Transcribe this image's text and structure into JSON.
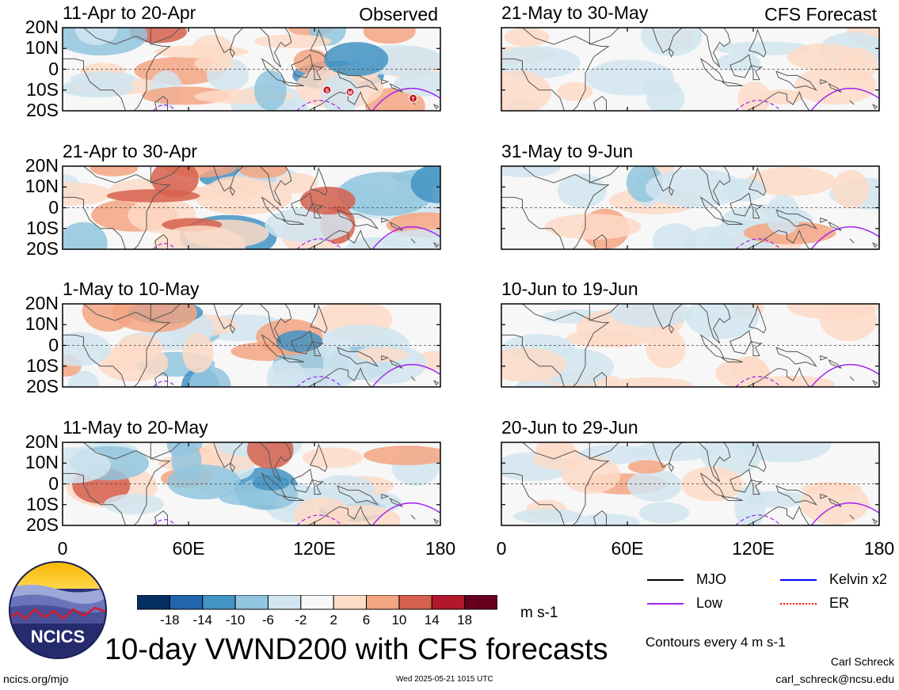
{
  "title": "10-day VWND200 with CFS forecasts",
  "units": "m s-1",
  "contour_note": "Contours every 4 m s-1",
  "credit": {
    "author": "Carl Schreck",
    "email": "carl_schreck@ncsu.edu"
  },
  "footer": {
    "site": "ncics.org/mjo",
    "timestamp": "Wed 2025-05-21 1015 UTC"
  },
  "logo": {
    "text": "NCICS"
  },
  "labels": {
    "observed": "Observed",
    "forecast": "CFS Forecast"
  },
  "axes": {
    "lat_ticks": [
      "20N",
      "10N",
      "0",
      "10S",
      "20S"
    ],
    "lon_ticks": [
      "0",
      "60E",
      "120E",
      "180"
    ]
  },
  "colorbar": {
    "labels": [
      "-18",
      "-14",
      "-10",
      "-6",
      "-2",
      "2",
      "6",
      "10",
      "14",
      "18"
    ],
    "colors": [
      "#053061",
      "#2166ac",
      "#4393c3",
      "#92c5de",
      "#d1e5f0",
      "#f7f7f7",
      "#fddbc7",
      "#f4a582",
      "#d6604d",
      "#b2182b",
      "#67001f"
    ]
  },
  "legend": [
    {
      "label": "MJO",
      "color": "#000000"
    },
    {
      "label": "Kelvin x2",
      "color": "#0000ff"
    },
    {
      "label": "Low",
      "color": "#a020f0"
    },
    {
      "label": "ER",
      "color": "#ff0000"
    }
  ],
  "markers": [
    "S",
    "M",
    "T"
  ],
  "chart_data": [
    {
      "type": "heatmap",
      "title": "11-Apr to 20-Apr",
      "kind": "observed",
      "xlim": [
        0,
        180
      ],
      "ylim": [
        -20,
        20
      ]
    },
    {
      "type": "heatmap",
      "title": "21-Apr to 30-Apr",
      "kind": "observed",
      "xlim": [
        0,
        180
      ],
      "ylim": [
        -20,
        20
      ]
    },
    {
      "type": "heatmap",
      "title": "1-May to 10-May",
      "kind": "observed",
      "xlim": [
        0,
        180
      ],
      "ylim": [
        -20,
        20
      ]
    },
    {
      "type": "heatmap",
      "title": "11-May to 20-May",
      "kind": "observed",
      "xlim": [
        0,
        180
      ],
      "ylim": [
        -20,
        20
      ]
    },
    {
      "type": "heatmap",
      "title": "21-May to 30-May",
      "kind": "forecast",
      "xlim": [
        0,
        180
      ],
      "ylim": [
        -20,
        20
      ]
    },
    {
      "type": "heatmap",
      "title": "31-May to 9-Jun",
      "kind": "forecast",
      "xlim": [
        0,
        180
      ],
      "ylim": [
        -20,
        20
      ]
    },
    {
      "type": "heatmap",
      "title": "10-Jun to 19-Jun",
      "kind": "forecast",
      "xlim": [
        0,
        180
      ],
      "ylim": [
        -20,
        20
      ]
    },
    {
      "type": "heatmap",
      "title": "20-Jun to 29-Jun",
      "kind": "forecast",
      "xlim": [
        0,
        180
      ],
      "ylim": [
        -20,
        20
      ]
    }
  ]
}
